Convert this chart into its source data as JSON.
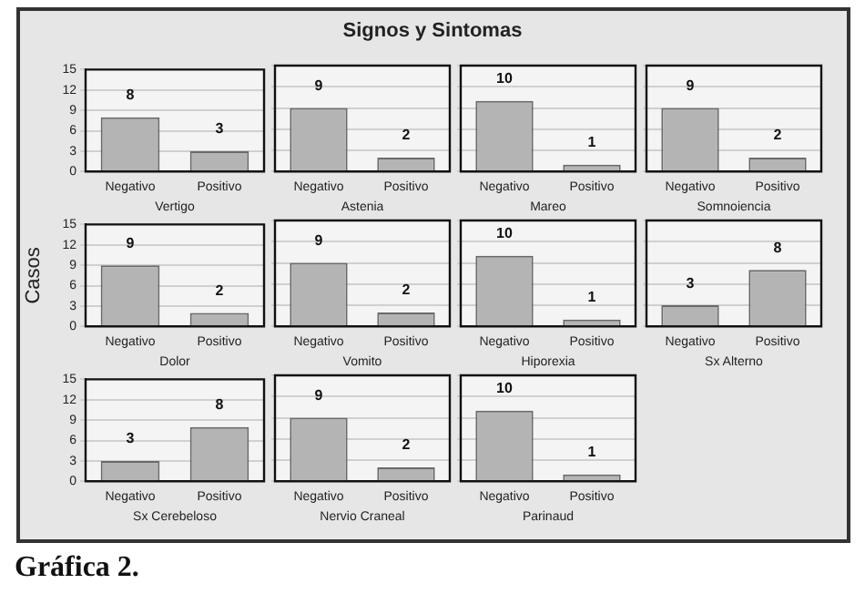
{
  "chart_data": [
    {
      "type": "bar",
      "xlabel": "Vertigo",
      "categories": [
        "Negativo",
        "Positivo"
      ],
      "values": [
        8,
        3
      ],
      "color": "#b4b4b4",
      "ylim": [
        0,
        15
      ],
      "yticks": [
        0,
        3,
        6,
        9,
        12,
        15
      ],
      "grid": "y",
      "data_labels": true
    },
    {
      "type": "bar",
      "title": "Signos y Sintomas",
      "xlabel": "Astenia",
      "categories": [
        "Negativo",
        "Positivo"
      ],
      "values": [
        9,
        2
      ],
      "color": "#b4b4b4",
      "ylim": [
        0,
        15
      ],
      "yticks": [
        0,
        3,
        6,
        9,
        12,
        15
      ],
      "grid": "y",
      "data_labels": true,
      "tick_labels": "x"
    },
    {
      "type": "bar",
      "xlabel": "Mareo",
      "categories": [
        "Negativo",
        "Positivo"
      ],
      "values": [
        10,
        1
      ],
      "color": "#b4b4b4",
      "ylim": [
        0,
        15
      ],
      "yticks": [
        0,
        3,
        6,
        9,
        12,
        15
      ],
      "grid": "y",
      "data_labels": true,
      "tick_labels": "x"
    },
    {
      "type": "bar",
      "xlabel": "Somnoiencia",
      "categories": [
        "Negativo",
        "Positivo"
      ],
      "values": [
        9,
        2
      ],
      "color": "#b4b4b4",
      "ylim": [
        0,
        15
      ],
      "yticks": [
        0,
        3,
        6,
        9,
        12,
        15
      ],
      "grid": "y",
      "data_labels": true,
      "tick_labels": "x"
    },
    {
      "type": "bar",
      "xlabel": "Dolor",
      "ylabel": "Casos",
      "categories": [
        "Negativo",
        "Positivo"
      ],
      "values": [
        9,
        2
      ],
      "color": "#b4b4b4",
      "ylim": [
        0,
        15
      ],
      "yticks": [
        0,
        3,
        6,
        9,
        12,
        15
      ],
      "grid": "y",
      "data_labels": true
    },
    {
      "type": "bar",
      "xlabel": "Vomito",
      "categories": [
        "Negativo",
        "Positivo"
      ],
      "values": [
        9,
        2
      ],
      "color": "#b4b4b4",
      "ylim": [
        0,
        15
      ],
      "yticks": [
        0,
        3,
        6,
        9,
        12,
        15
      ],
      "grid": "y",
      "data_labels": true,
      "tick_labels": "x"
    },
    {
      "type": "bar",
      "xlabel": "Hiporexia",
      "categories": [
        "Negativo",
        "Positivo"
      ],
      "values": [
        10,
        1
      ],
      "color": "#b4b4b4",
      "ylim": [
        0,
        15
      ],
      "yticks": [
        0,
        3,
        6,
        9,
        12,
        15
      ],
      "grid": "y",
      "data_labels": true,
      "tick_labels": "x"
    },
    {
      "type": "bar",
      "xlabel": "Sx Alterno",
      "categories": [
        "Negativo",
        "Positivo"
      ],
      "values": [
        3,
        8
      ],
      "color": "#b4b4b4",
      "ylim": [
        0,
        15
      ],
      "yticks": [
        0,
        3,
        6,
        9,
        12,
        15
      ],
      "grid": "y",
      "data_labels": true,
      "tick_labels": "x"
    },
    {
      "type": "bar",
      "annotations": [
        "Gráfica 2."
      ],
      "xlabel": "Sx Cerebeloso",
      "categories": [
        "Negativo",
        "Positivo"
      ],
      "values": [
        3,
        8
      ],
      "color": "#b4b4b4",
      "ylim": [
        0,
        15
      ],
      "yticks": [
        0,
        3,
        6,
        9,
        12,
        15
      ],
      "grid": "y",
      "data_labels": true
    },
    {
      "type": "bar",
      "xlabel": "Nervio Craneal",
      "categories": [
        "Negativo",
        "Positivo"
      ],
      "values": [
        9,
        2
      ],
      "color": "#b4b4b4",
      "ylim": [
        0,
        15
      ],
      "yticks": [
        0,
        3,
        6,
        9,
        12,
        15
      ],
      "grid": "y",
      "data_labels": true,
      "tick_labels": "x"
    },
    {
      "type": "bar",
      "xlabel": "Parinaud",
      "categories": [
        "Negativo",
        "Positivo"
      ],
      "values": [
        10,
        1
      ],
      "color": "#b4b4b4",
      "ylim": [
        0,
        15
      ],
      "yticks": [
        0,
        3,
        6,
        9,
        12,
        15
      ],
      "grid": "y",
      "data_labels": true,
      "tick_labels": "x"
    }
  ]
}
